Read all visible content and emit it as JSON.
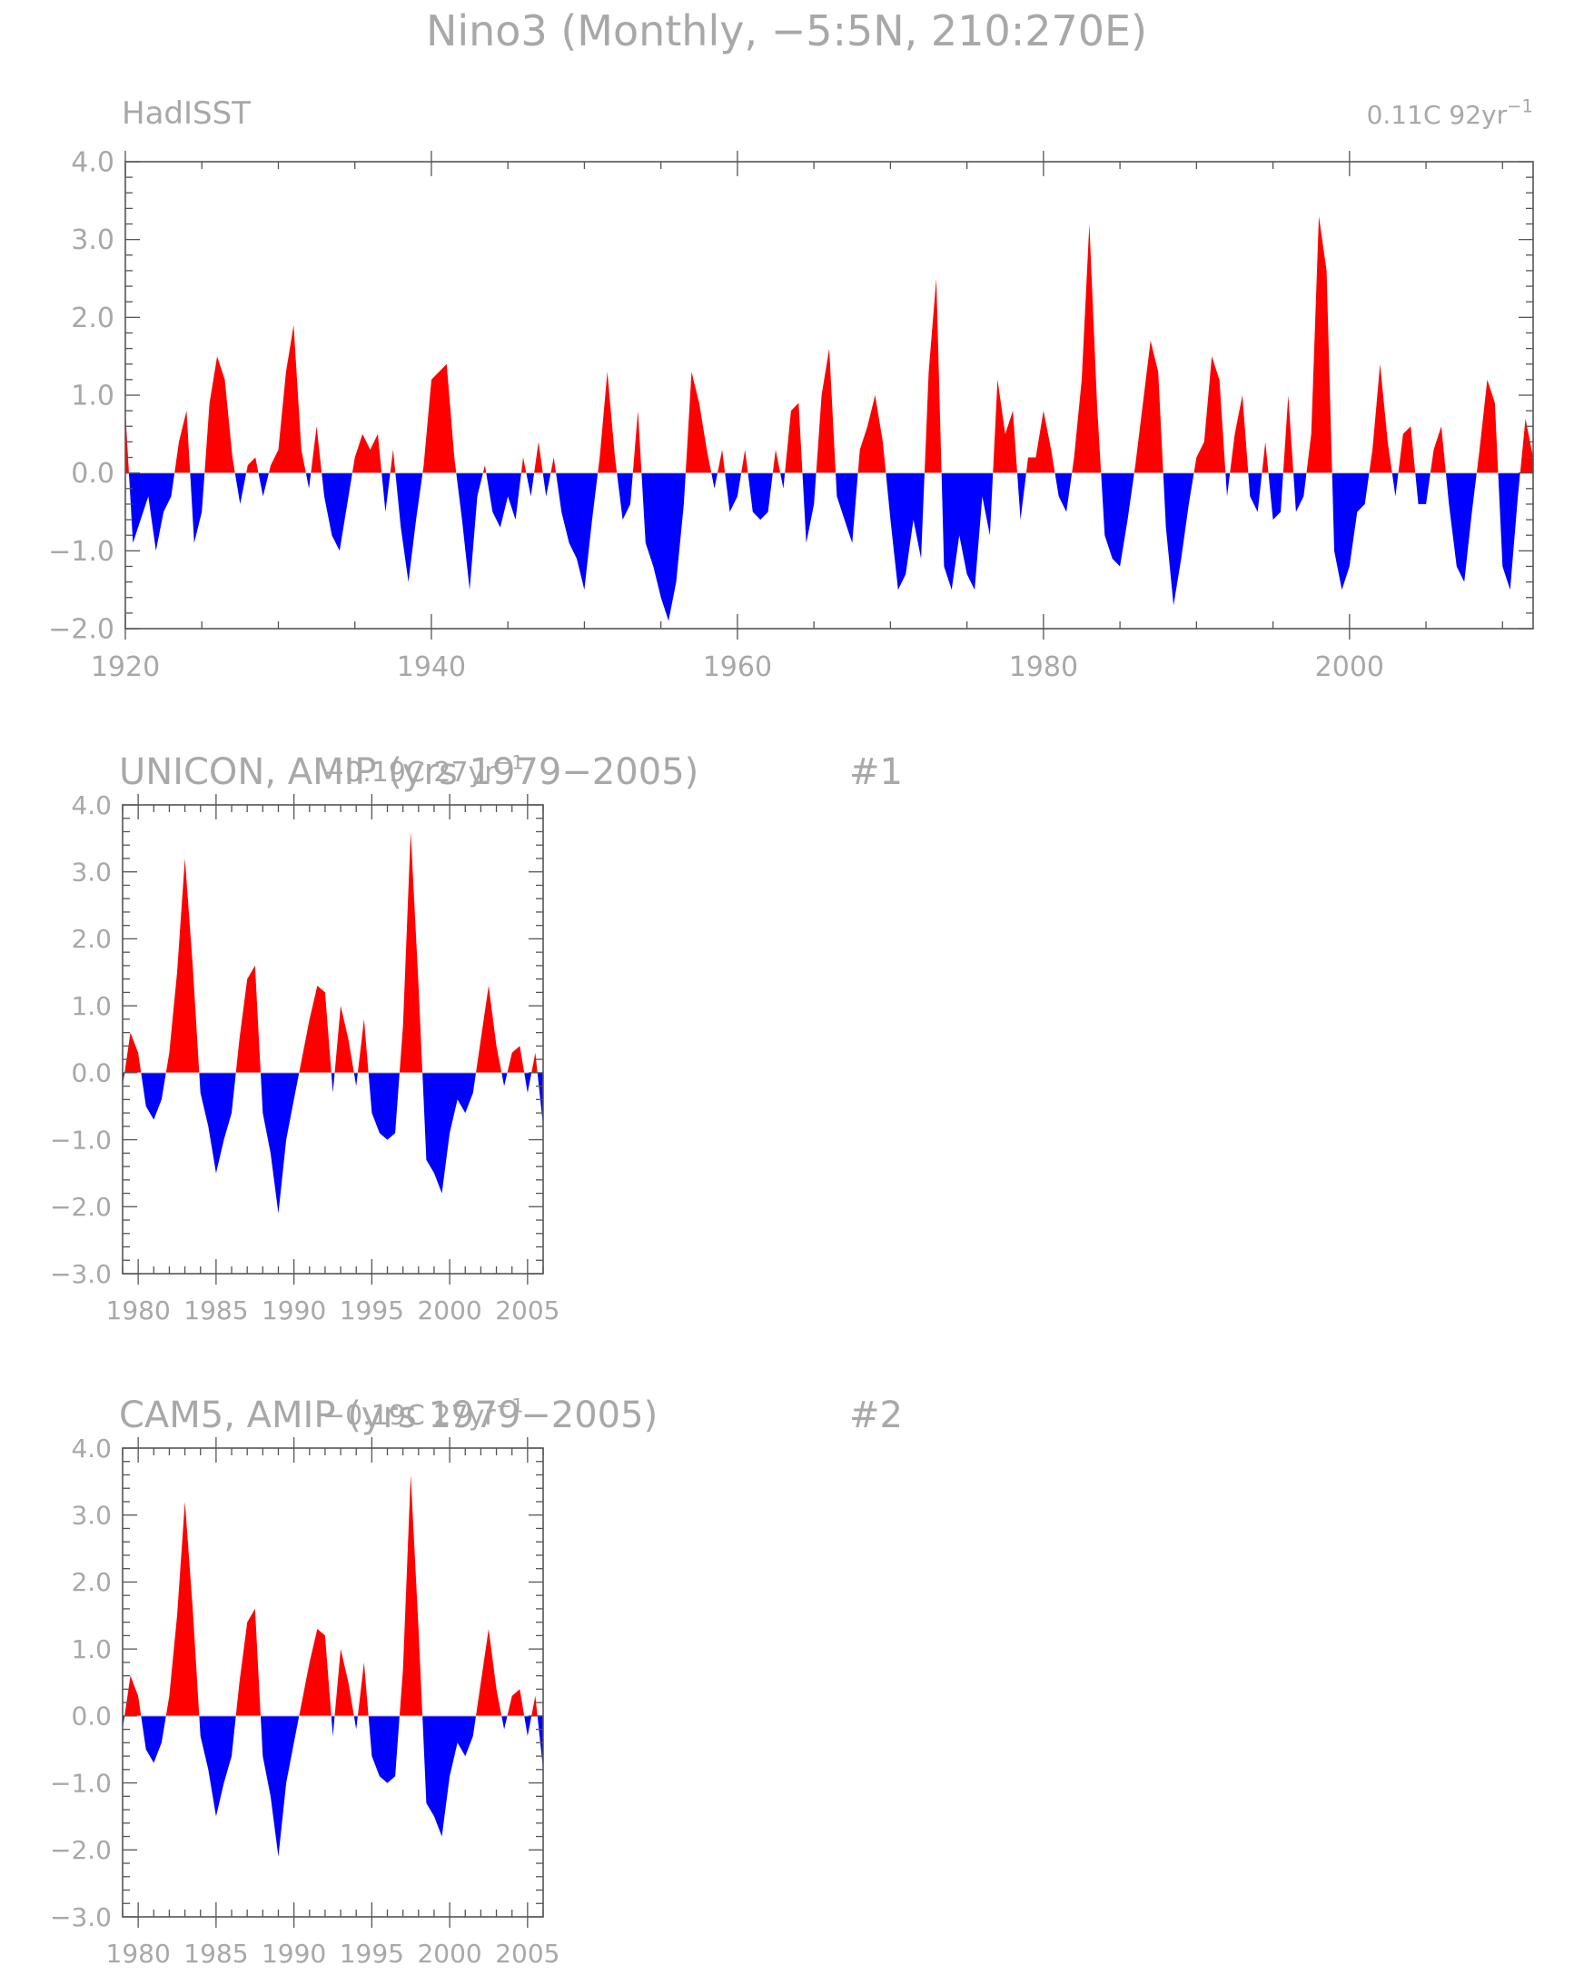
{
  "page_title": "Nino3 (Monthly, −5:5N, 210:270E)",
  "colors": {
    "positive": "#ff0000",
    "negative": "#0000ff",
    "text": "#a8a8a8",
    "frame": "#555555"
  },
  "chart_data": [
    {
      "type": "area",
      "title": "HadISST",
      "trend_label": "0.11C 92yr",
      "trend_sup": "−1",
      "xlim": [
        1920,
        2012
      ],
      "ylim": [
        -2.0,
        4.0
      ],
      "yticks": [
        4.0,
        3.0,
        2.0,
        1.0,
        0.0,
        -1.0,
        -2.0
      ],
      "ytick_labels": [
        "4.0",
        "3.0",
        "2.0",
        "1.0",
        "0.0",
        "−1.0",
        "−2.0"
      ],
      "xticks": [
        1920,
        1940,
        1960,
        1980,
        2000
      ],
      "xtick_labels": [
        "1920",
        "1940",
        "1960",
        "1980",
        "2000"
      ],
      "fill_above_zero": "red",
      "fill_below_zero": "blue",
      "series": [
        {
          "x": [
            1920.0,
            1920.5,
            1921.0,
            1921.5,
            1922.0,
            1922.5,
            1923.0,
            1923.5,
            1924.0,
            1924.5,
            1925.0,
            1925.5,
            1926.0,
            1926.5,
            1927.0,
            1927.5,
            1928.0,
            1928.5,
            1929.0,
            1929.5,
            1930.0,
            1930.5,
            1931.0,
            1931.5,
            1932.0,
            1932.5,
            1933.0,
            1933.5,
            1934.0,
            1934.5,
            1935.0,
            1935.5,
            1936.0,
            1936.5,
            1937.0,
            1937.5,
            1938.0,
            1938.5,
            1939.0,
            1939.5,
            1940.0,
            1940.5,
            1941.0,
            1941.5,
            1942.0,
            1942.5,
            1943.0,
            1943.5,
            1944.0,
            1944.5,
            1945.0,
            1945.5,
            1946.0,
            1946.5,
            1947.0,
            1947.5,
            1948.0,
            1948.5,
            1949.0,
            1949.5,
            1950.0,
            1950.5,
            1951.0,
            1951.5,
            1952.0,
            1952.5,
            1953.0,
            1953.5,
            1954.0,
            1954.5,
            1955.0,
            1955.5,
            1956.0,
            1956.5,
            1957.0,
            1957.5,
            1958.0,
            1958.5,
            1959.0,
            1959.5,
            1960.0,
            1960.5,
            1961.0,
            1961.5,
            1962.0,
            1962.5,
            1963.0,
            1963.5,
            1964.0,
            1964.5,
            1965.0,
            1965.5,
            1966.0,
            1966.5,
            1967.0,
            1967.5,
            1968.0,
            1968.5,
            1969.0,
            1969.5,
            1970.0,
            1970.5,
            1971.0,
            1971.5,
            1972.0,
            1972.5,
            1973.0,
            1973.5,
            1974.0,
            1974.5,
            1975.0,
            1975.5,
            1976.0,
            1976.5,
            1977.0,
            1977.5,
            1978.0,
            1978.5,
            1979.0,
            1979.5,
            1980.0,
            1980.5,
            1981.0,
            1981.5,
            1982.0,
            1982.5,
            1983.0,
            1983.5,
            1984.0,
            1984.5,
            1985.0,
            1985.5,
            1986.0,
            1986.5,
            1987.0,
            1987.5,
            1988.0,
            1988.5,
            1989.0,
            1989.5,
            1990.0,
            1990.5,
            1991.0,
            1991.5,
            1992.0,
            1992.5,
            1993.0,
            1993.5,
            1994.0,
            1994.5,
            1995.0,
            1995.5,
            1996.0,
            1996.5,
            1997.0,
            1997.5,
            1998.0,
            1998.5,
            1999.0,
            1999.5,
            2000.0,
            2000.5,
            2001.0,
            2001.5,
            2002.0,
            2002.5,
            2003.0,
            2003.5,
            2004.0,
            2004.5,
            2005.0,
            2005.5,
            2006.0,
            2006.5,
            2007.0,
            2007.5,
            2008.0,
            2008.5,
            2009.0,
            2009.5,
            2010.0,
            2010.5,
            2011.0,
            2011.5,
            2012.0
          ],
          "y": [
            0.8,
            -0.9,
            -0.6,
            -0.3,
            -1.0,
            -0.5,
            -0.3,
            0.4,
            0.8,
            -0.9,
            -0.5,
            0.9,
            1.5,
            1.2,
            0.2,
            -0.4,
            0.1,
            0.2,
            -0.3,
            0.1,
            0.3,
            1.3,
            1.9,
            0.3,
            -0.2,
            0.6,
            -0.3,
            -0.8,
            -1.0,
            -0.4,
            0.2,
            0.5,
            0.3,
            0.5,
            -0.5,
            0.3,
            -0.7,
            -1.4,
            -0.6,
            0.1,
            1.2,
            1.3,
            1.4,
            0.2,
            -0.6,
            -1.5,
            -0.3,
            0.1,
            -0.5,
            -0.7,
            -0.3,
            -0.6,
            0.2,
            -0.3,
            0.4,
            -0.3,
            0.2,
            -0.5,
            -0.9,
            -1.1,
            -1.5,
            -0.6,
            0.2,
            1.3,
            0.2,
            -0.6,
            -0.4,
            0.8,
            -0.9,
            -1.2,
            -1.6,
            -1.9,
            -1.4,
            -0.4,
            1.3,
            0.9,
            0.3,
            -0.2,
            0.3,
            -0.5,
            -0.3,
            0.3,
            -0.5,
            -0.6,
            -0.5,
            0.3,
            -0.2,
            0.8,
            0.9,
            -0.9,
            -0.4,
            1.0,
            1.6,
            -0.3,
            -0.6,
            -0.9,
            0.3,
            0.6,
            1.0,
            0.4,
            -0.6,
            -1.5,
            -1.3,
            -0.6,
            -1.1,
            1.3,
            2.5,
            -1.2,
            -1.5,
            -0.8,
            -1.3,
            -1.5,
            -0.3,
            -0.8,
            1.2,
            0.5,
            0.8,
            -0.6,
            0.2,
            0.2,
            0.8,
            0.3,
            -0.3,
            -0.5,
            0.2,
            1.2,
            3.2,
            0.9,
            -0.8,
            -1.1,
            -1.2,
            -0.6,
            0.1,
            0.9,
            1.7,
            1.3,
            -0.7,
            -1.7,
            -1.1,
            -0.4,
            0.2,
            0.4,
            1.5,
            1.2,
            -0.3,
            0.5,
            1.0,
            -0.3,
            -0.5,
            0.4,
            -0.6,
            -0.5,
            1.0,
            -0.5,
            -0.3,
            0.5,
            3.3,
            2.6,
            -1.0,
            -1.5,
            -1.2,
            -0.5,
            -0.4,
            0.3,
            1.4,
            0.4,
            -0.3,
            0.5,
            0.6,
            -0.4,
            -0.4,
            0.3,
            0.6,
            -0.4,
            -1.2,
            -1.4,
            -0.5,
            0.3,
            1.2,
            0.9,
            -1.2,
            -1.5,
            -0.3,
            0.7,
            0.2
          ],
          "fill": true
        }
      ]
    },
    {
      "type": "area",
      "title": "UNICON, AMIP (yrs 1979−2005)",
      "run_id": "#1",
      "trend_label": "−0.19C 27yr",
      "trend_sup": "−1",
      "xlim": [
        1979,
        2006
      ],
      "ylim": [
        -3.0,
        4.0
      ],
      "yticks": [
        4.0,
        3.0,
        2.0,
        1.0,
        0.0,
        -1.0,
        -2.0,
        -3.0
      ],
      "ytick_labels": [
        "4.0",
        "3.0",
        "2.0",
        "1.0",
        "0.0",
        "−1.0",
        "−2.0",
        "−3.0"
      ],
      "xticks": [
        1980,
        1985,
        1990,
        1995,
        2000,
        2005
      ],
      "xtick_labels": [
        "1980",
        "1985",
        "1990",
        "1995",
        "2000",
        "2005"
      ],
      "fill_above_zero": "red",
      "fill_below_zero": "blue",
      "series": [
        {
          "x": [
            1979.0,
            1979.5,
            1980.0,
            1980.5,
            1981.0,
            1981.5,
            1982.0,
            1982.5,
            1983.0,
            1983.5,
            1984.0,
            1984.5,
            1985.0,
            1985.5,
            1986.0,
            1986.5,
            1987.0,
            1987.5,
            1988.0,
            1988.5,
            1989.0,
            1989.5,
            1990.0,
            1990.5,
            1991.0,
            1991.5,
            1992.0,
            1992.5,
            1993.0,
            1993.5,
            1994.0,
            1994.5,
            1995.0,
            1995.5,
            1996.0,
            1996.5,
            1997.0,
            1997.5,
            1998.0,
            1998.5,
            1999.0,
            1999.5,
            2000.0,
            2000.5,
            2001.0,
            2001.5,
            2002.0,
            2002.5,
            2003.0,
            2003.5,
            2004.0,
            2004.5,
            2005.0,
            2005.5,
            2006.0
          ],
          "y": [
            -0.2,
            0.6,
            0.3,
            -0.5,
            -0.7,
            -0.4,
            0.3,
            1.5,
            3.2,
            1.6,
            -0.3,
            -0.8,
            -1.5,
            -1.0,
            -0.6,
            0.5,
            1.4,
            1.6,
            -0.6,
            -1.2,
            -2.1,
            -1.0,
            -0.4,
            0.2,
            0.8,
            1.3,
            1.2,
            -0.3,
            1.0,
            0.5,
            -0.2,
            0.8,
            -0.6,
            -0.9,
            -1.0,
            -0.9,
            0.7,
            3.6,
            1.3,
            -1.3,
            -1.5,
            -1.8,
            -0.9,
            -0.4,
            -0.6,
            -0.3,
            0.5,
            1.3,
            0.4,
            -0.2,
            0.3,
            0.4,
            -0.3,
            0.3,
            -0.8
          ],
          "fill": true
        }
      ]
    },
    {
      "type": "area",
      "title": "CAM5, AMIP (yrs 1979−2005)",
      "run_id": "#2",
      "trend_label": "−0.19C 27yr",
      "trend_sup": "−1",
      "xlim": [
        1979,
        2006
      ],
      "ylim": [
        -3.0,
        4.0
      ],
      "yticks": [
        4.0,
        3.0,
        2.0,
        1.0,
        0.0,
        -1.0,
        -2.0,
        -3.0
      ],
      "ytick_labels": [
        "4.0",
        "3.0",
        "2.0",
        "1.0",
        "0.0",
        "−1.0",
        "−2.0",
        "−3.0"
      ],
      "xticks": [
        1980,
        1985,
        1990,
        1995,
        2000,
        2005
      ],
      "xtick_labels": [
        "1980",
        "1985",
        "1990",
        "1995",
        "2000",
        "2005"
      ],
      "fill_above_zero": "red",
      "fill_below_zero": "blue",
      "series": [
        {
          "x": [
            1979.0,
            1979.5,
            1980.0,
            1980.5,
            1981.0,
            1981.5,
            1982.0,
            1982.5,
            1983.0,
            1983.5,
            1984.0,
            1984.5,
            1985.0,
            1985.5,
            1986.0,
            1986.5,
            1987.0,
            1987.5,
            1988.0,
            1988.5,
            1989.0,
            1989.5,
            1990.0,
            1990.5,
            1991.0,
            1991.5,
            1992.0,
            1992.5,
            1993.0,
            1993.5,
            1994.0,
            1994.5,
            1995.0,
            1995.5,
            1996.0,
            1996.5,
            1997.0,
            1997.5,
            1998.0,
            1998.5,
            1999.0,
            1999.5,
            2000.0,
            2000.5,
            2001.0,
            2001.5,
            2002.0,
            2002.5,
            2003.0,
            2003.5,
            2004.0,
            2004.5,
            2005.0,
            2005.5,
            2006.0
          ],
          "y": [
            -0.2,
            0.6,
            0.3,
            -0.5,
            -0.7,
            -0.4,
            0.3,
            1.5,
            3.2,
            1.6,
            -0.3,
            -0.8,
            -1.5,
            -1.0,
            -0.6,
            0.5,
            1.4,
            1.6,
            -0.6,
            -1.2,
            -2.1,
            -1.0,
            -0.4,
            0.2,
            0.8,
            1.3,
            1.2,
            -0.3,
            1.0,
            0.5,
            -0.2,
            0.8,
            -0.6,
            -0.9,
            -1.0,
            -0.9,
            0.7,
            3.6,
            1.3,
            -1.3,
            -1.5,
            -1.8,
            -0.9,
            -0.4,
            -0.6,
            -0.3,
            0.5,
            1.3,
            0.4,
            -0.2,
            0.3,
            0.4,
            -0.3,
            0.3,
            -0.8
          ],
          "fill": true
        }
      ]
    }
  ]
}
